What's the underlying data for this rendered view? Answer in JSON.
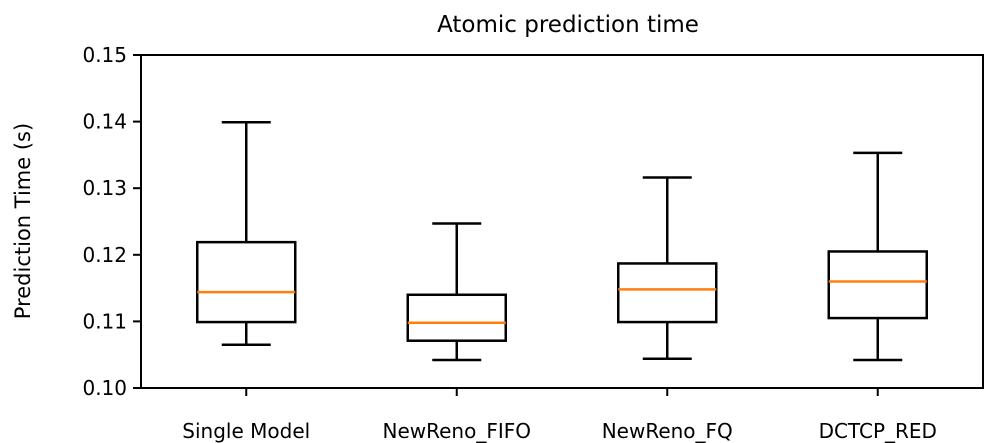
{
  "chart_data": {
    "type": "box",
    "title": "Atomic prediction time",
    "xlabel": "",
    "ylabel": "Prediction Time (s)",
    "ylim": [
      0.1,
      0.15
    ],
    "yticks": [
      "0.10",
      "0.11",
      "0.12",
      "0.13",
      "0.14",
      "0.15"
    ],
    "grid": false,
    "median_color": "#ff7f0e",
    "box_color": "#000000",
    "categories": [
      "Single Model",
      "NewReno_FIFO",
      "NewReno_FQ",
      "DCTCP_RED"
    ],
    "boxes": [
      {
        "whisker_low": 0.1065,
        "q1": 0.1099,
        "median": 0.1144,
        "q3": 0.1219,
        "whisker_high": 0.1399
      },
      {
        "whisker_low": 0.1042,
        "q1": 0.1071,
        "median": 0.1098,
        "q3": 0.114,
        "whisker_high": 0.1247
      },
      {
        "whisker_low": 0.1044,
        "q1": 0.1099,
        "median": 0.1148,
        "q3": 0.1187,
        "whisker_high": 0.1316
      },
      {
        "whisker_low": 0.1042,
        "q1": 0.1105,
        "median": 0.116,
        "q3": 0.1205,
        "whisker_high": 0.1353
      }
    ]
  }
}
